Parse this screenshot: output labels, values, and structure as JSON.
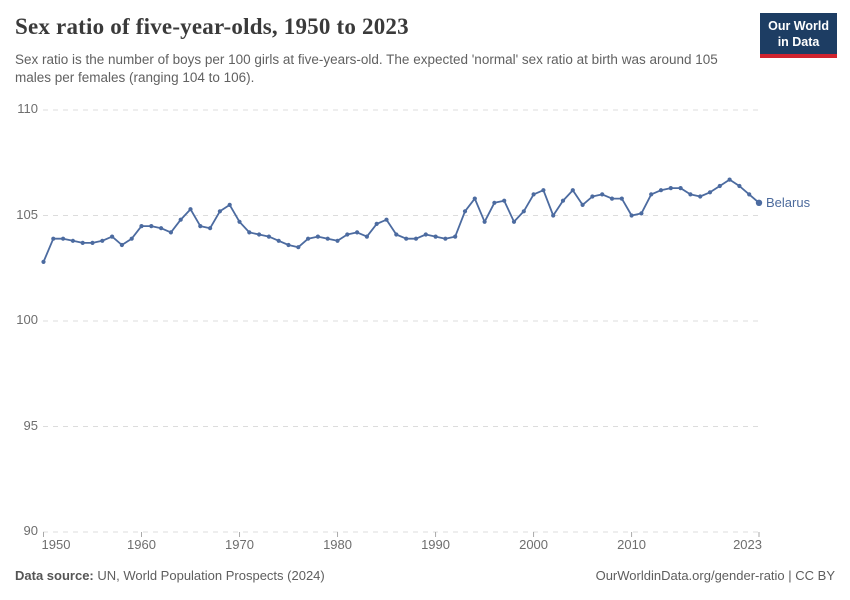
{
  "header": {
    "title": "Sex ratio of five-year-olds, 1950 to 2023",
    "subtitle": "Sex ratio is the number of boys per 100 girls at five-years-old. The expected 'normal' sex ratio at birth was around 105 males per females (ranging 104 to 106).",
    "logo": {
      "line1": "Our World",
      "line2": "in Data"
    }
  },
  "chart_data": {
    "type": "line",
    "title": "Sex ratio of five-year-olds, 1950 to 2023",
    "xlabel": "",
    "ylabel": "",
    "ylim": [
      90,
      110
    ],
    "y_ticks": [
      110,
      105,
      100,
      95,
      90
    ],
    "x_ticks": [
      1950,
      1960,
      1970,
      1980,
      1990,
      2000,
      2010,
      2023
    ],
    "grid": "horizontal-dashed",
    "legend_position": "end-of-line-label",
    "x": [
      1950,
      1951,
      1952,
      1953,
      1954,
      1955,
      1956,
      1957,
      1958,
      1959,
      1960,
      1961,
      1962,
      1963,
      1964,
      1965,
      1966,
      1967,
      1968,
      1969,
      1970,
      1971,
      1972,
      1973,
      1974,
      1975,
      1976,
      1977,
      1978,
      1979,
      1980,
      1981,
      1982,
      1983,
      1984,
      1985,
      1986,
      1987,
      1988,
      1989,
      1990,
      1991,
      1992,
      1993,
      1994,
      1995,
      1996,
      1997,
      1998,
      1999,
      2000,
      2001,
      2002,
      2003,
      2004,
      2005,
      2006,
      2007,
      2008,
      2009,
      2010,
      2011,
      2012,
      2013,
      2014,
      2015,
      2016,
      2017,
      2018,
      2019,
      2020,
      2021,
      2022,
      2023
    ],
    "series": [
      {
        "name": "Belarus",
        "color": "#4C6BA0",
        "values": [
          102.8,
          103.9,
          103.9,
          103.8,
          103.7,
          103.7,
          103.8,
          104.0,
          103.6,
          103.9,
          104.5,
          104.5,
          104.4,
          104.2,
          104.8,
          105.3,
          104.5,
          104.4,
          105.2,
          105.5,
          104.7,
          104.2,
          104.1,
          104.0,
          103.8,
          103.6,
          103.5,
          103.9,
          104.0,
          103.9,
          103.8,
          104.1,
          104.2,
          104.0,
          104.6,
          104.8,
          104.1,
          103.9,
          103.9,
          104.1,
          104.0,
          103.9,
          104.0,
          105.2,
          105.8,
          104.7,
          105.6,
          105.7,
          104.7,
          105.2,
          106.0,
          106.2,
          105.0,
          105.7,
          106.2,
          105.5,
          105.9,
          106.0,
          105.8,
          105.8,
          105.0,
          105.1,
          106.0,
          106.2,
          106.3,
          106.3,
          106.0,
          105.9,
          106.1,
          106.4,
          106.7,
          106.4,
          106.0,
          105.6
        ]
      }
    ],
    "entity_label": "Belarus"
  },
  "footer": {
    "datasource_label": "Data source:",
    "datasource_text": " UN, World Population Prospects (2024)",
    "link_text": "OurWorldinData.org/gender-ratio | CC BY"
  },
  "colors": {
    "line": "#4C6BA0",
    "grid": "#dcdcdc",
    "tick": "#a9a9a9",
    "axis_text": "#6e6e6e",
    "logo_bg": "#1d3d63",
    "logo_stripe": "#d0232e"
  }
}
